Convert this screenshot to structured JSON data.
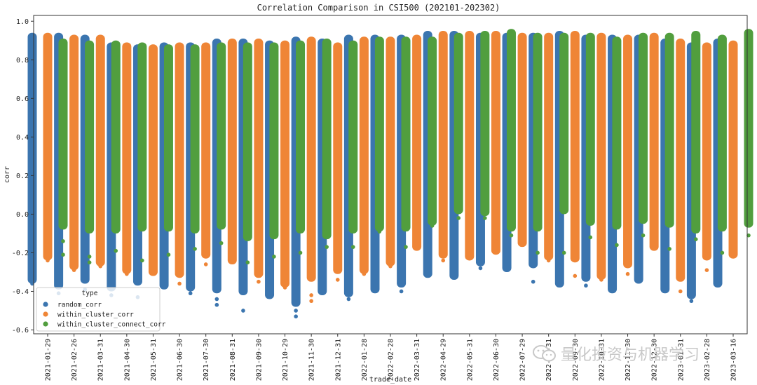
{
  "chart_data": {
    "type": "strip",
    "title": "Correlation Comparison in CSI500 (202101-202302)",
    "xlabel": "trade_date",
    "ylabel": "corr",
    "ylim": [
      -0.62,
      1.03
    ],
    "yticks": [
      -0.6,
      -0.4,
      -0.2,
      0.0,
      0.2,
      0.4,
      0.6,
      0.8,
      1.0
    ],
    "ytick_labels": [
      "-0.6",
      "-0.4",
      "-0.2",
      "0.0",
      "0.2",
      "0.4",
      "0.6",
      "0.8",
      "1.0"
    ],
    "legend_title": "type",
    "legend_position": "lower-left",
    "categories": [
      "2021-01-29",
      "2021-02-26",
      "2021-03-31",
      "2021-04-30",
      "2021-05-31",
      "2021-06-30",
      "2021-07-30",
      "2021-08-31",
      "2021-09-30",
      "2021-10-29",
      "2021-11-30",
      "2021-12-31",
      "2022-01-28",
      "2022-02-28",
      "2022-03-31",
      "2022-04-29",
      "2022-05-31",
      "2022-06-30",
      "2022-07-29",
      "2022-08-31",
      "2022-09-30",
      "2022-10-31",
      "2022-11-30",
      "2022-12-30",
      "2023-01-31",
      "2023-02-28",
      "2023-03-16"
    ],
    "series": [
      {
        "name": "random_corr",
        "color": "#3b75af",
        "min": [
          -0.36,
          -0.39,
          -0.36,
          -0.4,
          -0.37,
          -0.39,
          -0.4,
          -0.41,
          -0.42,
          -0.44,
          -0.48,
          -0.42,
          -0.43,
          -0.41,
          -0.38,
          -0.33,
          -0.34,
          -0.27,
          -0.3,
          -0.28,
          -0.38,
          -0.35,
          -0.41,
          -0.36,
          -0.41,
          -0.44,
          -0.38
        ],
        "max": [
          0.94,
          0.94,
          0.93,
          0.89,
          0.88,
          0.89,
          0.89,
          0.91,
          0.91,
          0.9,
          0.92,
          0.91,
          0.93,
          0.93,
          0.93,
          0.95,
          0.95,
          0.94,
          0.94,
          0.94,
          0.95,
          0.93,
          0.93,
          0.93,
          0.91,
          0.89,
          0.91
        ],
        "outliers": [
          [
            0,
            -0.36
          ],
          [
            0,
            -0.31
          ],
          [
            1,
            -0.41
          ],
          [
            2,
            -0.39
          ],
          [
            3,
            -0.42
          ],
          [
            4,
            -0.43
          ],
          [
            6,
            -0.41
          ],
          [
            7,
            -0.44
          ],
          [
            7,
            -0.47
          ],
          [
            8,
            -0.5
          ],
          [
            10,
            -0.5
          ],
          [
            10,
            -0.53
          ],
          [
            12,
            -0.44
          ],
          [
            14,
            -0.4
          ],
          [
            17,
            -0.28
          ],
          [
            19,
            -0.35
          ],
          [
            21,
            -0.37
          ],
          [
            25,
            -0.45
          ]
        ]
      },
      {
        "name": "within_cluster_corr",
        "color": "#ef8536",
        "min": [
          -0.24,
          -0.29,
          -0.27,
          -0.31,
          -0.32,
          -0.33,
          -0.23,
          -0.26,
          -0.33,
          -0.38,
          -0.35,
          -0.31,
          -0.31,
          -0.27,
          -0.19,
          -0.23,
          -0.24,
          -0.21,
          -0.17,
          -0.24,
          -0.25,
          -0.34,
          -0.28,
          -0.19,
          -0.35,
          -0.24,
          -0.23
        ],
        "max": [
          0.94,
          0.93,
          0.93,
          0.89,
          0.88,
          0.89,
          0.89,
          0.91,
          0.91,
          0.9,
          0.92,
          0.89,
          0.92,
          0.92,
          0.93,
          0.95,
          0.95,
          0.95,
          0.94,
          0.94,
          0.95,
          0.94,
          0.93,
          0.94,
          0.91,
          0.89,
          0.9
        ],
        "outliers": [
          [
            0,
            -0.24
          ],
          [
            1,
            -0.29
          ],
          [
            2,
            -0.27
          ],
          [
            3,
            -0.31
          ],
          [
            5,
            -0.36
          ],
          [
            6,
            -0.26
          ],
          [
            8,
            -0.35
          ],
          [
            9,
            -0.38
          ],
          [
            10,
            -0.42
          ],
          [
            10,
            -0.45
          ],
          [
            11,
            -0.34
          ],
          [
            12,
            -0.31
          ],
          [
            13,
            -0.27
          ],
          [
            15,
            -0.24
          ],
          [
            17,
            -0.14
          ],
          [
            19,
            -0.24
          ],
          [
            20,
            -0.32
          ],
          [
            21,
            -0.34
          ],
          [
            22,
            -0.31
          ],
          [
            24,
            -0.4
          ],
          [
            25,
            -0.29
          ]
        ]
      },
      {
        "name": "within_cluster_connect_corr",
        "color": "#519e3e",
        "min": [
          -0.08,
          -0.1,
          -0.1,
          -0.09,
          -0.09,
          -0.1,
          -0.08,
          -0.14,
          -0.13,
          -0.1,
          -0.13,
          -0.1,
          -0.09,
          -0.09,
          -0.06,
          0.0,
          -0.01,
          -0.09,
          -0.09,
          0.0,
          -0.06,
          -0.08,
          -0.05,
          -0.07,
          -0.1,
          -0.09,
          -0.07
        ],
        "max": [
          0.91,
          0.9,
          0.9,
          0.89,
          0.88,
          0.88,
          0.89,
          0.89,
          0.89,
          0.9,
          0.91,
          0.9,
          0.92,
          0.92,
          0.92,
          0.94,
          0.95,
          0.96,
          0.94,
          0.94,
          0.94,
          0.92,
          0.94,
          0.94,
          0.95,
          0.93,
          0.96
        ],
        "outliers": [
          [
            0,
            -0.14
          ],
          [
            0,
            -0.21
          ],
          [
            1,
            -0.22
          ],
          [
            1,
            -0.25
          ],
          [
            2,
            -0.19
          ],
          [
            3,
            -0.24
          ],
          [
            4,
            -0.21
          ],
          [
            5,
            -0.18
          ],
          [
            6,
            -0.15
          ],
          [
            7,
            -0.25
          ],
          [
            8,
            -0.22
          ],
          [
            9,
            -0.2
          ],
          [
            10,
            -0.17
          ],
          [
            11,
            -0.17
          ],
          [
            12,
            -0.09
          ],
          [
            13,
            -0.17
          ],
          [
            14,
            -0.06
          ],
          [
            15,
            -0.02
          ],
          [
            16,
            -0.02
          ],
          [
            17,
            -0.11
          ],
          [
            18,
            -0.2
          ],
          [
            19,
            -0.2
          ],
          [
            20,
            -0.12
          ],
          [
            21,
            -0.16
          ],
          [
            22,
            -0.11
          ],
          [
            23,
            -0.18
          ],
          [
            24,
            -0.13
          ],
          [
            25,
            -0.2
          ],
          [
            26,
            -0.11
          ]
        ]
      }
    ]
  },
  "watermark": {
    "text": "量化投资与机器学习"
  }
}
